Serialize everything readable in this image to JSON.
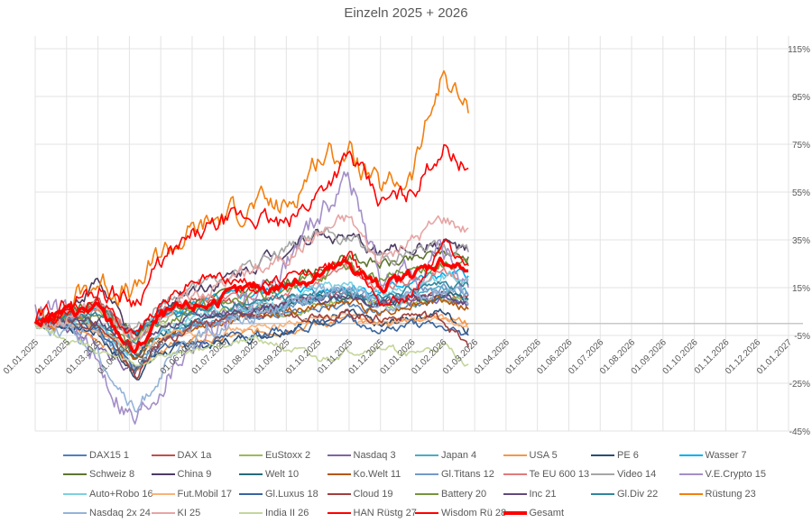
{
  "chart_data": {
    "type": "line",
    "title": "Einzeln 2025 + 2026",
    "xlabel": "",
    "ylabel": "",
    "x_ticks": [
      "01.01.2025",
      "01.02.2025",
      "01.03.2025",
      "01.04.2025",
      "01.05.2025",
      "01.06.2025",
      "01.07.2025",
      "01.08.2025",
      "01.09.2025",
      "01.10.2025",
      "01.11.2025",
      "01.12.2025",
      "01.01.2026",
      "01.02.2026",
      "01.03.2026",
      "01.04.2026",
      "01.05.2026",
      "01.06.2026",
      "01.07.2026",
      "01.08.2026",
      "01.09.2026",
      "01.10.2026",
      "01.11.2026",
      "01.12.2026",
      "01.01.2027"
    ],
    "x_unit": "months since 01.01.2025",
    "xlim": [
      0,
      24
    ],
    "y_ticks": [
      "115%",
      "95%",
      "75%",
      "55%",
      "35%",
      "15%",
      "-5%",
      "-25%",
      "-45%"
    ],
    "y_tick_values": [
      115,
      95,
      75,
      55,
      35,
      15,
      -5,
      -25,
      -45
    ],
    "ylim": [
      -45,
      115
    ],
    "grid": true,
    "legend_position": "bottom",
    "x": [
      0,
      1,
      2,
      3.2,
      4,
      5,
      6,
      7,
      8,
      9,
      10,
      11,
      12,
      13,
      13.8
    ],
    "series": [
      {
        "name": "DAX15  1",
        "color": "#4F81BD",
        "values": [
          0,
          3,
          8,
          -5,
          2,
          5,
          4,
          3,
          4,
          6,
          8,
          5,
          7,
          10,
          8
        ]
      },
      {
        "name": "DAX  1a",
        "color": "#C0504D",
        "values": [
          0,
          4,
          10,
          -6,
          5,
          10,
          9,
          8,
          9,
          11,
          12,
          8,
          10,
          13,
          12
        ]
      },
      {
        "name": "EuStoxx 2",
        "color": "#9BBB59",
        "values": [
          0,
          3,
          7,
          -8,
          2,
          6,
          5,
          5,
          6,
          8,
          10,
          7,
          9,
          12,
          10
        ]
      },
      {
        "name": "Nasdaq 3",
        "color": "#8064A2",
        "values": [
          0,
          -2,
          -8,
          -20,
          -8,
          0,
          4,
          6,
          8,
          12,
          13,
          8,
          10,
          11,
          6
        ]
      },
      {
        "name": "Japan 4",
        "color": "#4BACC6",
        "values": [
          0,
          -1,
          -3,
          -15,
          -5,
          0,
          3,
          6,
          8,
          10,
          12,
          9,
          12,
          14,
          12
        ]
      },
      {
        "name": "USA 5",
        "color": "#F79646",
        "values": [
          0,
          -2,
          -6,
          -18,
          -10,
          -8,
          -6,
          -4,
          -2,
          0,
          2,
          0,
          2,
          4,
          0
        ]
      },
      {
        "name": "PE 6",
        "color": "#2C4D75",
        "values": [
          0,
          -1,
          -4,
          -22,
          -12,
          -10,
          -8,
          -5,
          -2,
          2,
          4,
          -2,
          3,
          5,
          -2
        ]
      },
      {
        "name": "Wasser  7",
        "color": "#00B0F0",
        "values": [
          0,
          2,
          5,
          -5,
          5,
          8,
          10,
          12,
          15,
          14,
          16,
          13,
          18,
          20,
          20
        ]
      },
      {
        "name": "Schweiz 8",
        "color": "#5F7530",
        "values": [
          0,
          4,
          8,
          -4,
          5,
          10,
          12,
          15,
          18,
          22,
          28,
          25,
          26,
          30,
          28
        ]
      },
      {
        "name": "China  9",
        "color": "#4D3B62",
        "values": [
          0,
          5,
          18,
          -8,
          8,
          15,
          18,
          25,
          32,
          38,
          35,
          30,
          32,
          34,
          30
        ]
      },
      {
        "name": "Welt 10",
        "color": "#276A7C",
        "values": [
          0,
          1,
          0,
          -14,
          -4,
          0,
          3,
          5,
          7,
          10,
          12,
          8,
          10,
          12,
          10
        ]
      },
      {
        "name": "Ko.Welt 11",
        "color": "#B65708",
        "values": [
          0,
          1,
          -2,
          -14,
          -5,
          -2,
          1,
          3,
          5,
          7,
          9,
          5,
          8,
          10,
          6
        ]
      },
      {
        "name": "Gl.Titans 12",
        "color": "#729ACA",
        "values": [
          0,
          0,
          -4,
          -18,
          -8,
          -2,
          2,
          5,
          8,
          12,
          14,
          10,
          13,
          15,
          12
        ]
      },
      {
        "name": "Te EU 600 13",
        "color": "#E07B7A",
        "values": [
          0,
          3,
          6,
          -6,
          4,
          8,
          10,
          12,
          14,
          18,
          22,
          15,
          18,
          22,
          18
        ]
      },
      {
        "name": "Video 14",
        "color": "#A6A6A6",
        "values": [
          0,
          4,
          8,
          -5,
          8,
          15,
          18,
          25,
          32,
          38,
          35,
          28,
          30,
          32,
          30
        ]
      },
      {
        "name": "V.E.Crypto 15",
        "color": "#A38FC8",
        "values": [
          8,
          3,
          -18,
          -42,
          -25,
          -8,
          0,
          12,
          25,
          45,
          62,
          18,
          20,
          30,
          15
        ]
      },
      {
        "name": "Auto+Robo 16",
        "color": "#7DCFE0",
        "values": [
          0,
          2,
          0,
          -14,
          -4,
          2,
          6,
          8,
          10,
          14,
          16,
          12,
          16,
          20,
          18
        ]
      },
      {
        "name": "Fut.Mobil 17",
        "color": "#F9B27A",
        "values": [
          0,
          0,
          -3,
          -12,
          -6,
          -4,
          -3,
          -2,
          0,
          2,
          3,
          0,
          1,
          2,
          -2
        ]
      },
      {
        "name": "Gl.Luxus 18",
        "color": "#3A65A0",
        "values": [
          0,
          2,
          -2,
          -20,
          -10,
          -8,
          -6,
          -4,
          -3,
          0,
          2,
          -3,
          0,
          -2,
          -5
        ]
      },
      {
        "name": "Cloud 19",
        "color": "#A0403D",
        "values": [
          0,
          2,
          0,
          -22,
          -8,
          -2,
          2,
          4,
          3,
          5,
          4,
          2,
          4,
          2,
          -10
        ]
      },
      {
        "name": "Battery 20",
        "color": "#77933C",
        "values": [
          0,
          2,
          4,
          -12,
          2,
          6,
          8,
          12,
          15,
          20,
          24,
          18,
          22,
          25,
          24
        ]
      },
      {
        "name": "Inc 21",
        "color": "#604A7B",
        "values": [
          0,
          1,
          2,
          -12,
          -2,
          2,
          4,
          6,
          8,
          10,
          12,
          8,
          10,
          12,
          8
        ]
      },
      {
        "name": "Gl.Div 22",
        "color": "#31859C",
        "values": [
          0,
          2,
          4,
          -8,
          2,
          5,
          7,
          9,
          11,
          13,
          15,
          12,
          14,
          17,
          16
        ]
      },
      {
        "name": "Rüstung 23",
        "color": "#F37F0F",
        "values": [
          0,
          8,
          18,
          12,
          30,
          38,
          45,
          50,
          48,
          70,
          72,
          55,
          62,
          105,
          88
        ]
      },
      {
        "name": "Nasdaq 2x  24",
        "color": "#95B3D7",
        "values": [
          0,
          -3,
          -12,
          -38,
          -20,
          -8,
          0,
          4,
          8,
          12,
          14,
          6,
          10,
          14,
          8
        ]
      },
      {
        "name": "KI  25",
        "color": "#E6A5A4",
        "values": [
          0,
          3,
          6,
          -10,
          5,
          12,
          18,
          22,
          28,
          38,
          45,
          25,
          35,
          45,
          40
        ]
      },
      {
        "name": "India II  26",
        "color": "#C3D69B",
        "values": [
          0,
          -6,
          -12,
          -18,
          -14,
          -12,
          -8,
          -6,
          -10,
          -16,
          -12,
          -10,
          -13,
          -10,
          -17
        ]
      },
      {
        "name": "HAN Rüstg 27",
        "color": "#FF0000",
        "values": [
          0,
          5,
          9,
          -4,
          8,
          18,
          20,
          16,
          18,
          22,
          28,
          10,
          12,
          34,
          25
        ]
      },
      {
        "name": "Wisdom Rü 28",
        "color": "#FF0000",
        "values": [
          0,
          8,
          15,
          10,
          25,
          35,
          42,
          45,
          40,
          55,
          70,
          50,
          55,
          75,
          65
        ]
      },
      {
        "name": "Gesamt",
        "color": "#FF0000",
        "thick": true,
        "values": [
          0,
          5,
          6,
          -12,
          3,
          7,
          10,
          15,
          16,
          20,
          25,
          15,
          20,
          27,
          22
        ]
      }
    ]
  }
}
